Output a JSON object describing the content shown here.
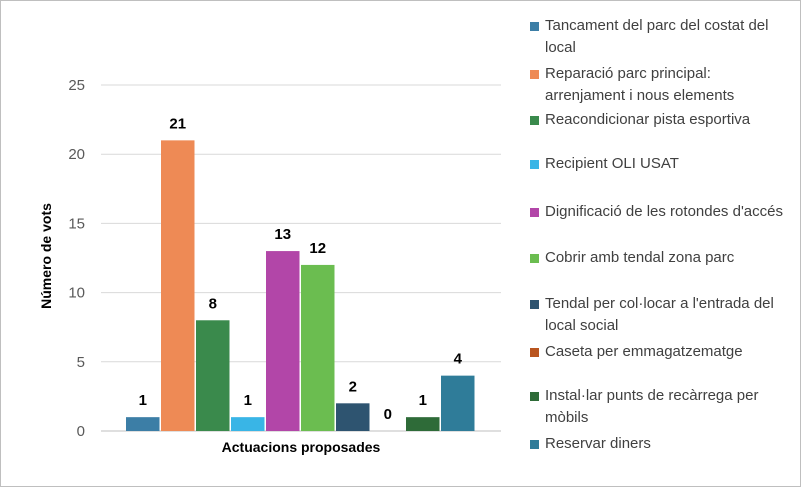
{
  "chart_data": {
    "type": "bar",
    "xlabel": "Actuacions proposades",
    "ylabel": "Número de vots",
    "ylim": [
      0,
      25
    ],
    "yticks": [
      0,
      5,
      10,
      15,
      20,
      25
    ],
    "grid": true,
    "legend_position": "right",
    "series": [
      {
        "name": "Tancament del parc del costat del local",
        "value": 1,
        "color": "#3c7ea6"
      },
      {
        "name": "Reparació parc principal: arrenjament i nous elements",
        "value": 21,
        "color": "#ee8a55"
      },
      {
        "name": "Reacondicionar pista esportiva",
        "value": 8,
        "color": "#3a8a4c"
      },
      {
        "name": "Recipient OLI USAT",
        "value": 1,
        "color": "#39b5e6"
      },
      {
        "name": "Dignificació de les rotondes d'accés",
        "value": 13,
        "color": "#b246a8"
      },
      {
        "name": "Cobrir amb tendal zona parc",
        "value": 12,
        "color": "#6bbd50"
      },
      {
        "name": "Tendal per col·locar a l'entrada del local social",
        "value": 2,
        "color": "#2e5470"
      },
      {
        "name": "Caseta per emmagatzematge",
        "value": 0,
        "color": "#b9551f"
      },
      {
        "name": "Instal·lar punts de recàrrega per mòbils",
        "value": 1,
        "color": "#2e6b38"
      },
      {
        "name": "Reservar diners",
        "value": 4,
        "color": "#2f7c99"
      }
    ]
  }
}
